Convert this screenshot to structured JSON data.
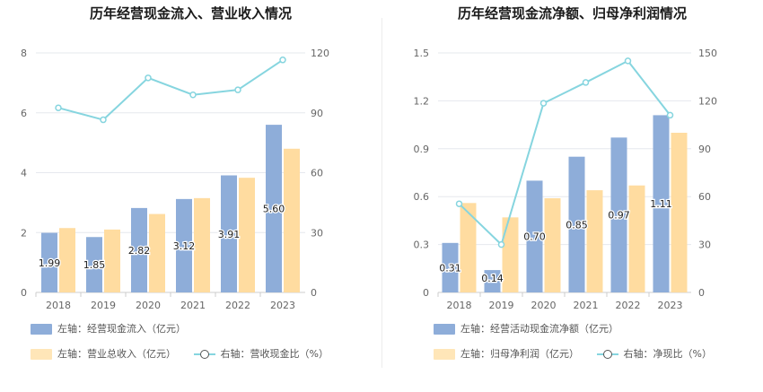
{
  "colors": {
    "bar_left": "#8eadd9",
    "bar_right": "#ffdca0",
    "line": "#86d5df",
    "grid": "#e6e8ee",
    "axis_text": "#666666"
  },
  "chart_data": [
    {
      "type": "bar",
      "title": "历年经营现金流入、营业收入情况",
      "categories": [
        "2018",
        "2019",
        "2020",
        "2021",
        "2022",
        "2023"
      ],
      "y_left_ticks": [
        "0",
        "2",
        "4",
        "6",
        "8"
      ],
      "y_right_ticks": [
        "0",
        "30",
        "60",
        "90",
        "120"
      ],
      "y_left_range": [
        0,
        8
      ],
      "y_right_range": [
        0,
        120
      ],
      "series": [
        {
          "name": "左轴：经营现金流入（亿元）",
          "kind": "bar",
          "axis": "left",
          "values": [
            1.99,
            1.85,
            2.82,
            3.12,
            3.91,
            5.6
          ],
          "labels": [
            "1.99",
            "1.85",
            "2.82",
            "3.12",
            "3.91",
            "5.60"
          ]
        },
        {
          "name": "左轴：营业总收入（亿元）",
          "kind": "bar",
          "axis": "left",
          "values": [
            2.15,
            2.1,
            2.62,
            3.15,
            3.83,
            4.8
          ]
        },
        {
          "name": "右轴：营收现金比（%）",
          "kind": "line",
          "axis": "right",
          "values": [
            92.5,
            86.5,
            107.5,
            99,
            101.5,
            116.5
          ]
        }
      ],
      "legend": "bottom",
      "grid": true
    },
    {
      "type": "bar",
      "title": "历年经营现金流净额、归母净利润情况",
      "categories": [
        "2018",
        "2019",
        "2020",
        "2021",
        "2022",
        "2023"
      ],
      "y_left_ticks": [
        "0",
        "0.3",
        "0.6",
        "0.9",
        "1.2",
        "1.5"
      ],
      "y_right_ticks": [
        "0",
        "30",
        "60",
        "90",
        "120",
        "150"
      ],
      "y_left_range": [
        0,
        1.5
      ],
      "y_right_range": [
        0,
        150
      ],
      "series": [
        {
          "name": "左轴：经营活动现金流净额（亿元）",
          "kind": "bar",
          "axis": "left",
          "values": [
            0.31,
            0.14,
            0.7,
            0.85,
            0.97,
            1.11
          ],
          "labels": [
            "0.31",
            "0.14",
            "0.70",
            "0.85",
            "0.97",
            "1.11"
          ]
        },
        {
          "name": "左轴：归母净利润（亿元）",
          "kind": "bar",
          "axis": "left",
          "values": [
            0.56,
            0.47,
            0.59,
            0.64,
            0.67,
            1.0
          ]
        },
        {
          "name": "右轴：净现比（%）",
          "kind": "line",
          "axis": "right",
          "values": [
            55.5,
            30,
            118.5,
            131.5,
            145,
            111
          ]
        }
      ],
      "legend": "bottom",
      "grid": true
    }
  ]
}
